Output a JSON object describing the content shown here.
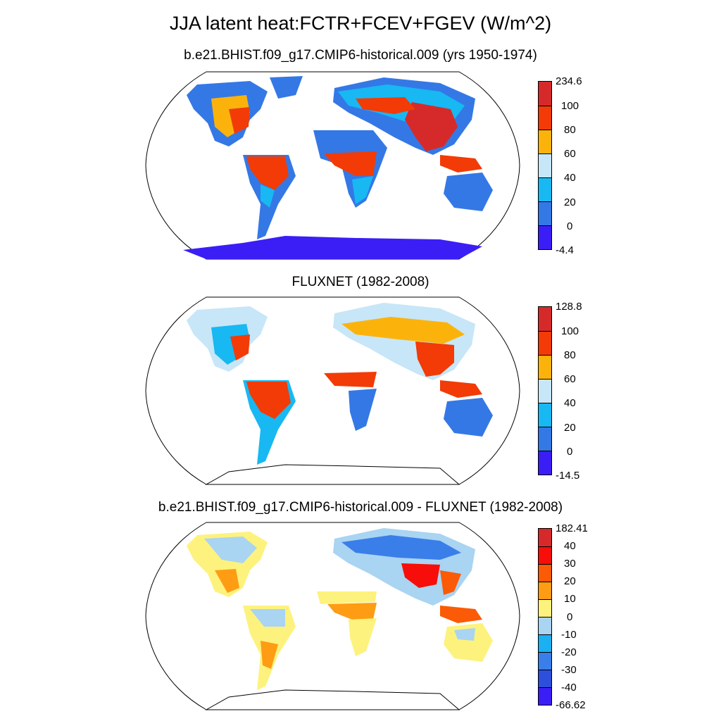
{
  "title": "JJA latent heat:FCTR+FCEV+FGEV (W/m^2)",
  "panels": [
    {
      "title": "b.e21.BHIST.f09_g17.CMIP6-historical.009 (yrs 1950-1974)",
      "colorbar": {
        "labels": [
          "234.6",
          "100",
          "80",
          "60",
          "40",
          "20",
          "0",
          "-4.4"
        ],
        "colors": [
          "#d62a2a",
          "#f23b06",
          "#fbb30c",
          "#c7e6f8",
          "#18b8f2",
          "#3478e6",
          "#3a1ef5"
        ]
      }
    },
    {
      "title": "FLUXNET (1982-2008)",
      "colorbar": {
        "labels": [
          "128.8",
          "100",
          "80",
          "60",
          "40",
          "20",
          "0",
          "-14.5"
        ],
        "colors": [
          "#d62a2a",
          "#f23b06",
          "#fbb30c",
          "#c7e6f8",
          "#18b8f2",
          "#3478e6",
          "#3a1ef5"
        ]
      }
    },
    {
      "title": "b.e21.BHIST.f09_g17.CMIP6-historical.009 - FLUXNET (1982-2008)",
      "colorbar": {
        "labels": [
          "182.41",
          "40",
          "30",
          "20",
          "10",
          "0",
          "-10",
          "-20",
          "-30",
          "-40",
          "-66.62"
        ],
        "colors": [
          "#d62a2a",
          "#f70e0a",
          "#fb5a06",
          "#fe9c14",
          "#fdf27d",
          "#a9d4f2",
          "#1ab0f1",
          "#3a7ee9",
          "#2e4fdb",
          "#3a1ef5"
        ]
      }
    }
  ]
}
